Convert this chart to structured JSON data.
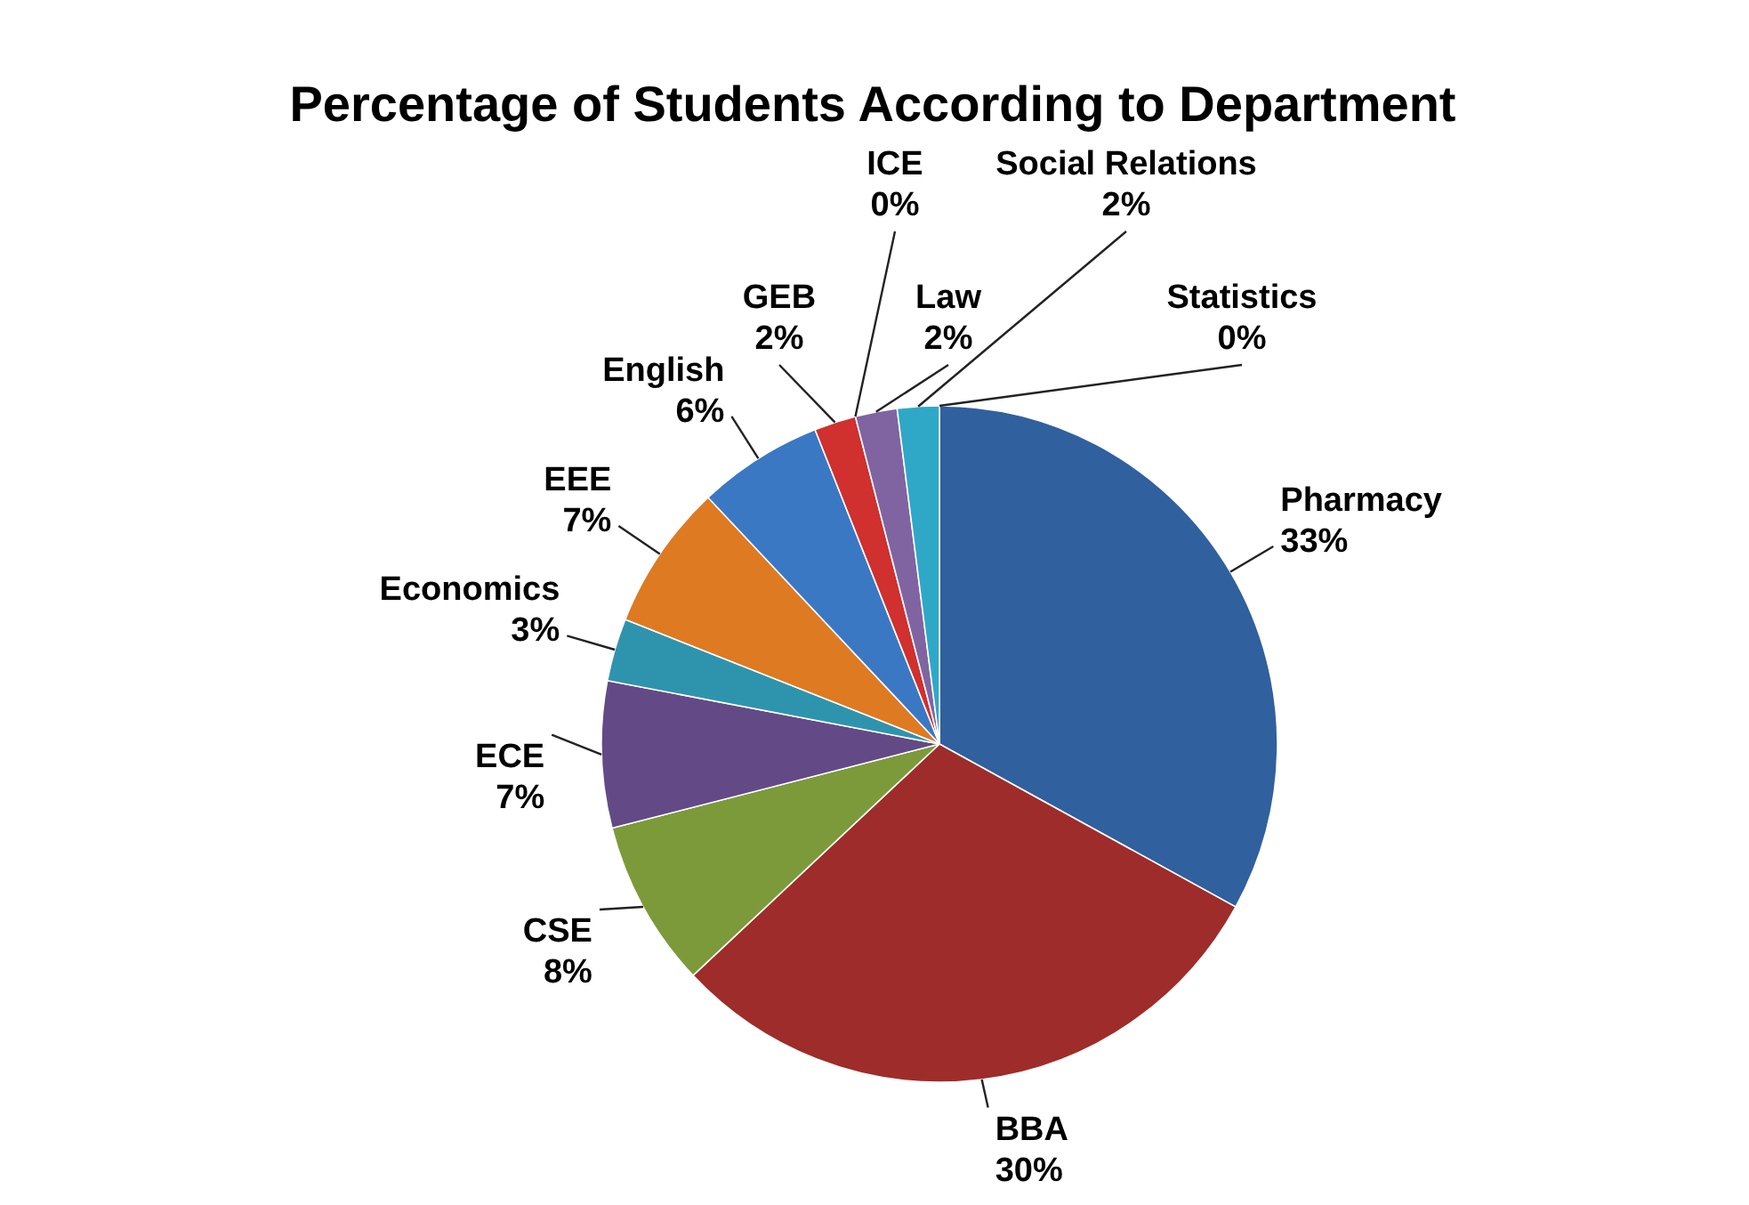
{
  "chart_data": {
    "type": "pie",
    "title": "Percentage of Students According to Department",
    "categories": [
      "Pharmacy",
      "BBA",
      "CSE",
      "ECE",
      "Economics",
      "EEE",
      "English",
      "GEB",
      "ICE",
      "Law",
      "Social Relations",
      "Statistics"
    ],
    "values": [
      33,
      30,
      8,
      7,
      3,
      7,
      6,
      2,
      0,
      2,
      2,
      0
    ],
    "value_labels": [
      "33%",
      "30%",
      "8%",
      "7%",
      "3%",
      "7%",
      "6%",
      "2%",
      "0%",
      "2%",
      "2%",
      "0%"
    ],
    "colors": [
      "#30609e",
      "#9e2c2a",
      "#7c9a3a",
      "#634a86",
      "#2e94ae",
      "#de7a22",
      "#3b78c4",
      "#d0302e",
      null,
      "#8064a2",
      "#2fa8c8",
      null
    ]
  }
}
